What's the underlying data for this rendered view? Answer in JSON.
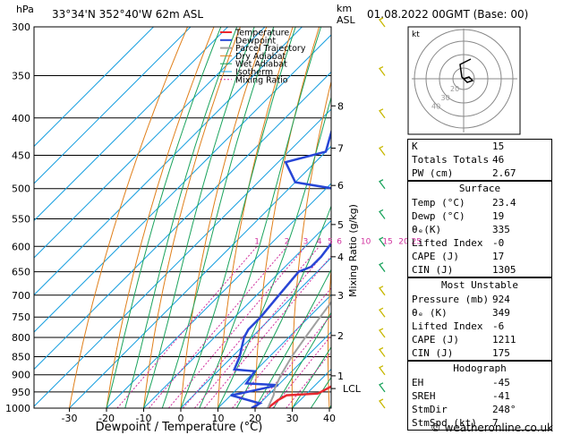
{
  "header": {
    "location": "33°34'N  352°40'W  62m  ASL",
    "datetime": "01.08.2022  00GMT  (Base: 00)",
    "hpa_unit": "hPa",
    "km_unit": "km",
    "asl_unit": "ASL"
  },
  "chart_data": {
    "type": "line",
    "xlabel": "Dewpoint / Temperature (°C)",
    "ylabel_right": "Mixing Ratio (g/kg)",
    "x_ticks": [
      -30,
      -20,
      -10,
      0,
      10,
      20,
      30,
      40
    ],
    "pressure_ticks": [
      300,
      350,
      400,
      450,
      500,
      550,
      600,
      650,
      700,
      750,
      800,
      850,
      900,
      950,
      1000
    ],
    "km_ticks": [
      {
        "km": "1",
        "p": 903
      },
      {
        "km": "2",
        "p": 795
      },
      {
        "km": "3",
        "p": 700
      },
      {
        "km": "4",
        "p": 620
      },
      {
        "km": "5",
        "p": 560
      },
      {
        "km": "6",
        "p": 495
      },
      {
        "km": "7",
        "p": 440
      },
      {
        "km": "8",
        "p": 385
      }
    ],
    "lcl_label": "LCL",
    "lcl_p": 940,
    "mixing_ratio_labels": [
      "1",
      "2",
      "3",
      "4",
      "5",
      "6",
      "10",
      "15",
      "20",
      "25"
    ],
    "legend": [
      "Temperature",
      "Dewpoint",
      "Parcel Trajectory",
      "Dry Adiabat",
      "Wet Adiabat",
      "Isotherm",
      "Mixing Ratio"
    ],
    "colors": {
      "temperature": "#e8282f",
      "dewpoint": "#2746d6",
      "parcel": "#a0a0a0",
      "dry_adiabat": "#e07f1a",
      "wet_adiabat": "#1aa35c",
      "isotherm": "#1aa0e0",
      "mixing_ratio": "#d0309e"
    },
    "series": [
      {
        "name": "Temperature",
        "points": [
          [
            23.4,
            1000
          ],
          [
            24,
            975
          ],
          [
            25,
            960
          ],
          [
            33,
            955
          ],
          [
            35,
            930
          ],
          [
            34,
            905
          ],
          [
            35,
            895
          ],
          [
            35,
            875
          ],
          [
            36,
            855
          ],
          [
            33,
            800
          ],
          [
            31,
            760
          ],
          [
            29,
            720
          ],
          [
            26,
            680
          ],
          [
            23,
            630
          ],
          [
            20,
            590
          ],
          [
            17,
            555
          ],
          [
            14,
            520
          ],
          [
            13,
            500
          ],
          [
            12,
            470
          ],
          [
            10,
            440
          ],
          [
            6,
            410
          ],
          [
            4,
            380
          ],
          [
            2,
            345
          ],
          [
            -2,
            320
          ],
          [
            -5,
            300
          ]
        ]
      },
      {
        "name": "Dewpoint",
        "points": [
          [
            19,
            1000
          ],
          [
            20,
            985
          ],
          [
            10,
            960
          ],
          [
            12,
            955
          ],
          [
            20,
            930
          ],
          [
            11,
            925
          ],
          [
            10,
            890
          ],
          [
            4,
            885
          ],
          [
            2,
            850
          ],
          [
            0,
            825
          ],
          [
            -2,
            800
          ],
          [
            -3,
            780
          ],
          [
            -3,
            750
          ],
          [
            -4,
            700
          ],
          [
            -5,
            650
          ],
          [
            -3,
            640
          ],
          [
            -3,
            620
          ],
          [
            -4,
            590
          ],
          [
            -5,
            560
          ],
          [
            -7,
            530
          ],
          [
            -12,
            505
          ],
          [
            -30,
            490
          ],
          [
            -38,
            460
          ],
          [
            -30,
            445
          ],
          [
            -35,
            410
          ],
          [
            -40,
            380
          ],
          [
            -45,
            350
          ],
          [
            -47,
            320
          ],
          [
            -50,
            300
          ]
        ]
      },
      {
        "name": "Parcel Trajectory",
        "points": [
          [
            23.4,
            1000
          ],
          [
            21.5,
            960
          ],
          [
            20,
            940
          ],
          [
            18,
            900
          ],
          [
            16,
            850
          ],
          [
            14.5,
            800
          ],
          [
            13,
            750
          ],
          [
            11.5,
            700
          ],
          [
            10,
            650
          ],
          [
            8.5,
            600
          ],
          [
            7,
            550
          ],
          [
            5,
            500
          ],
          [
            3,
            450
          ],
          [
            0,
            400
          ],
          [
            -3,
            350
          ],
          [
            -8,
            300
          ]
        ]
      }
    ],
    "hodograph": {
      "label": "kt",
      "ring_labels": [
        "40",
        "30",
        "20"
      ]
    },
    "wind_barbs_shown": true
  },
  "table": {
    "rows1": [
      {
        "k": "K",
        "v": "15"
      },
      {
        "k": "Totals Totals",
        "v": "46"
      },
      {
        "k": "PW (cm)",
        "v": "2.67"
      }
    ],
    "surface_title": "Surface",
    "surface": [
      {
        "k": "Temp (°C)",
        "v": "23.4"
      },
      {
        "k": "Dewp (°C)",
        "v": "19"
      },
      {
        "k": "θₑ(K)",
        "v": "335"
      },
      {
        "k": "Lifted Index",
        "v": "-0"
      },
      {
        "k": "CAPE (J)",
        "v": "17"
      },
      {
        "k": "CIN (J)",
        "v": "1305"
      }
    ],
    "unstable_title": "Most Unstable",
    "unstable": [
      {
        "k": "Pressure (mb)",
        "v": "924"
      },
      {
        "k": "θₑ (K)",
        "v": "349"
      },
      {
        "k": "Lifted Index",
        "v": "-6"
      },
      {
        "k": "CAPE (J)",
        "v": "1211"
      },
      {
        "k": "CIN (J)",
        "v": "175"
      }
    ],
    "hodo_title": "Hodograph",
    "hodo": [
      {
        "k": "EH",
        "v": "-45"
      },
      {
        "k": "SREH",
        "v": "-41"
      },
      {
        "k": "StmDir",
        "v": "248°"
      },
      {
        "k": "StmSpd (kt)",
        "v": "7"
      }
    ]
  },
  "footer": {
    "copyright": "© weatheronline.co.uk"
  }
}
